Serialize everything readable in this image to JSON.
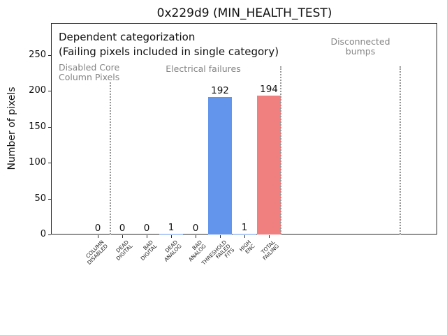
{
  "window": {
    "title": "0x229d9 (MIN_HEALTH_TEST)"
  },
  "chart_data": {
    "type": "bar",
    "title": "0x229d9 (MIN_HEALTH_TEST)",
    "xlabel": "",
    "ylabel": "Number of pixels",
    "categories": [
      "COLUMN\nDISABLED",
      "DEAD\nDIGITAL",
      "BAD\nDIGITAL",
      "DEAD\nANALOG",
      "BAD\nANALOG",
      "THRESHOLD\nFAILED\nFITS",
      "HIGH\nENC",
      "TOTAL\nFAILING"
    ],
    "values": [
      0,
      0,
      0,
      1,
      0,
      192,
      1,
      194
    ],
    "bar_value_labels": [
      "0",
      "0",
      "0",
      "1",
      "0",
      "192",
      "1",
      "194"
    ],
    "bar_colors": [
      "#6495ed",
      "#6495ed",
      "#6495ed",
      "#6495ed",
      "#6495ed",
      "#6495ed",
      "#6495ed",
      "#f08080"
    ],
    "yticks": [
      0,
      50,
      100,
      150,
      200,
      250
    ],
    "ylim": [
      0,
      295
    ],
    "grid": false,
    "legend": null,
    "annotations": {
      "primary": [
        "Dependent categorization",
        "(Failing pixels included in single category)"
      ],
      "groups": [
        {
          "label": "Disabled Core\nColumn Pixels",
          "color": "#848484",
          "align": "left"
        },
        {
          "label": "Electrical failures",
          "color": "#848484",
          "align": "center"
        },
        {
          "label": "Disconnected\nbumps",
          "color": "#848484",
          "align": "center"
        }
      ]
    },
    "separator_style": "vertical-dotted-gray",
    "separator_count": 3
  },
  "colors": {
    "bar_blue": "#6495ed",
    "bar_red": "#f08080",
    "gray_text": "#848484",
    "axis": "#262626",
    "background": "#ffffff"
  }
}
